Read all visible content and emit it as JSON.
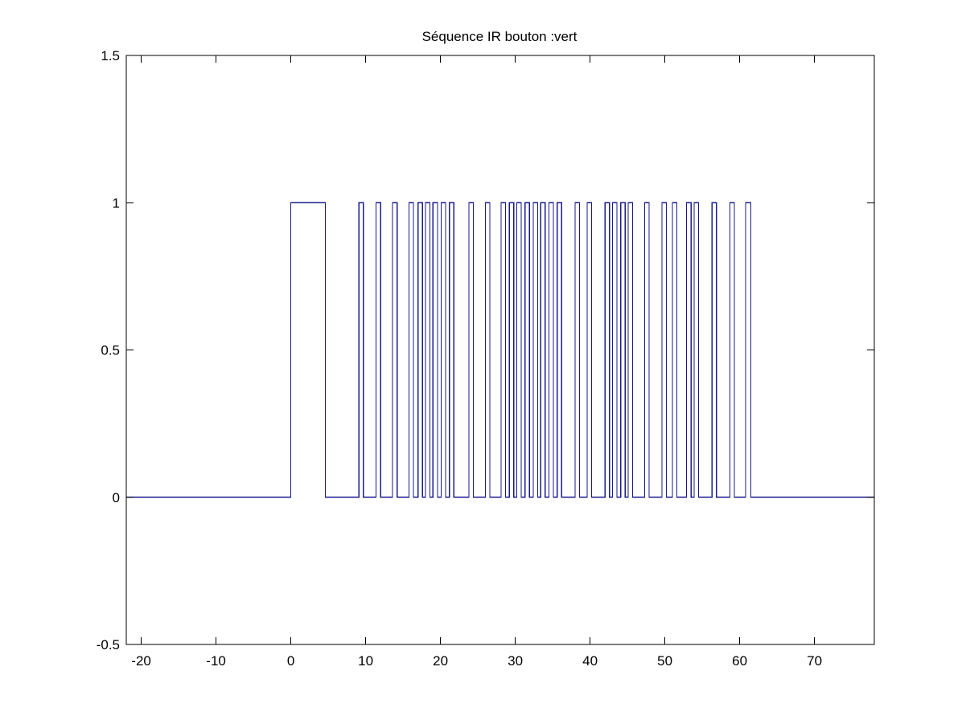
{
  "chart_data": {
    "type": "line",
    "title": "Séquence IR bouton :vert",
    "xlabel": "",
    "ylabel": "",
    "xlim": [
      -22,
      78
    ],
    "ylim": [
      -0.5,
      1.5
    ],
    "xticks": [
      -20,
      -10,
      0,
      10,
      20,
      30,
      40,
      50,
      60,
      70
    ],
    "xtick_labels": [
      "-20",
      "-10",
      "0",
      "10",
      "20",
      "30",
      "40",
      "50",
      "60",
      "70"
    ],
    "yticks": [
      -0.5,
      0,
      0.5,
      1,
      1.5
    ],
    "ytick_labels": [
      "-0.5",
      "0",
      "0.5",
      "1",
      "1.5"
    ],
    "grid": false,
    "series": [
      {
        "color": "#1a1a8c",
        "step_signal": {
          "baseline": 0,
          "high": 1,
          "start": -22,
          "end": 78,
          "pulses": [
            [
              0.0,
              4.6
            ],
            [
              9.1,
              9.7
            ],
            [
              11.4,
              12.0
            ],
            [
              13.6,
              14.2
            ],
            [
              15.8,
              16.4
            ],
            [
              17.0,
              17.6
            ],
            [
              18.0,
              18.6
            ],
            [
              19.0,
              19.6
            ],
            [
              20.1,
              20.7
            ],
            [
              21.2,
              21.8
            ],
            [
              23.8,
              24.4
            ],
            [
              26.0,
              26.6
            ],
            [
              28.1,
              28.7
            ],
            [
              29.2,
              29.8
            ],
            [
              30.2,
              30.8
            ],
            [
              31.3,
              31.9
            ],
            [
              32.4,
              33.0
            ],
            [
              33.4,
              34.0
            ],
            [
              34.5,
              35.1
            ],
            [
              35.6,
              36.2
            ],
            [
              38.0,
              38.6
            ],
            [
              39.6,
              40.2
            ],
            [
              42.0,
              42.6
            ],
            [
              43.0,
              43.6
            ],
            [
              44.1,
              44.7
            ],
            [
              45.1,
              45.7
            ],
            [
              47.3,
              47.9
            ],
            [
              49.6,
              50.2
            ],
            [
              51.0,
              51.6
            ],
            [
              52.9,
              53.5
            ],
            [
              53.9,
              54.5
            ],
            [
              56.3,
              56.9
            ],
            [
              58.7,
              59.3
            ],
            [
              60.8,
              61.5
            ]
          ]
        }
      }
    ]
  }
}
